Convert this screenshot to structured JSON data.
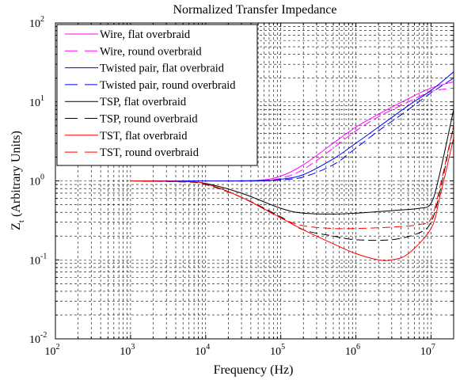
{
  "chart_data": {
    "type": "line",
    "title": "Normalized Transfer Impedance",
    "xlabel": "Frequency (Hz)",
    "ylabel": {
      "main": "Z",
      "sub": "t",
      "rest": " (Arbitrary Units)"
    },
    "xscale": "log",
    "yscale": "log",
    "xlim": [
      100,
      20000000
    ],
    "ylim": [
      0.01,
      100
    ],
    "grid": true,
    "legend_position": "top-left",
    "x_ticks": [
      {
        "base": "10",
        "exp": "2"
      },
      {
        "base": "10",
        "exp": "3"
      },
      {
        "base": "10",
        "exp": "4"
      },
      {
        "base": "10",
        "exp": "5"
      },
      {
        "base": "10",
        "exp": "6"
      },
      {
        "base": "10",
        "exp": "7"
      }
    ],
    "y_ticks": [
      {
        "base": "10",
        "exp": "2"
      },
      {
        "base": "10",
        "exp": "1"
      },
      {
        "base": "10",
        "exp": "0"
      },
      {
        "base": "10",
        "exp": "-1"
      },
      {
        "base": "10",
        "exp": "-2"
      }
    ],
    "series": [
      {
        "name": "Wire, flat overbraid",
        "color": "#ff00ff",
        "dash": "solid",
        "points": [
          [
            1000,
            1.0
          ],
          [
            10000,
            1.0
          ],
          [
            50000,
            1.02
          ],
          [
            100000,
            1.15
          ],
          [
            200000,
            1.6
          ],
          [
            500000,
            3.0
          ],
          [
            1000000,
            4.8
          ],
          [
            2000000,
            7.0
          ],
          [
            5000000,
            11.0
          ],
          [
            10000000,
            15.0
          ],
          [
            20000000,
            18.0
          ]
        ]
      },
      {
        "name": "Wire, round overbraid",
        "color": "#ff00ff",
        "dash": "dashed",
        "points": [
          [
            1000,
            1.0
          ],
          [
            10000,
            1.0
          ],
          [
            50000,
            1.01
          ],
          [
            100000,
            1.08
          ],
          [
            200000,
            1.4
          ],
          [
            500000,
            2.6
          ],
          [
            1000000,
            4.3
          ],
          [
            2000000,
            6.5
          ],
          [
            5000000,
            10.0
          ],
          [
            10000000,
            13.5
          ],
          [
            20000000,
            15.0
          ]
        ]
      },
      {
        "name": "Twisted pair, flat overbraid",
        "color": "#0000ff",
        "dash": "solid",
        "points": [
          [
            1000,
            1.0
          ],
          [
            10000,
            1.0
          ],
          [
            50000,
            1.0
          ],
          [
            100000,
            1.05
          ],
          [
            200000,
            1.2
          ],
          [
            500000,
            1.9
          ],
          [
            1000000,
            3.0
          ],
          [
            2000000,
            4.8
          ],
          [
            5000000,
            9.0
          ],
          [
            10000000,
            14.0
          ],
          [
            20000000,
            24.0
          ]
        ]
      },
      {
        "name": "Twisted pair, round overbraid",
        "color": "#0000ff",
        "dash": "dashed",
        "points": [
          [
            1000,
            1.0
          ],
          [
            10000,
            1.0
          ],
          [
            50000,
            1.0
          ],
          [
            100000,
            1.03
          ],
          [
            200000,
            1.12
          ],
          [
            500000,
            1.6
          ],
          [
            1000000,
            2.6
          ],
          [
            2000000,
            4.3
          ],
          [
            5000000,
            8.0
          ],
          [
            10000000,
            13.0
          ],
          [
            20000000,
            20.0
          ]
        ]
      },
      {
        "name": "TSP, flat overbraid",
        "color": "#000000",
        "dash": "solid",
        "points": [
          [
            1000,
            1.0
          ],
          [
            5000,
            0.98
          ],
          [
            10000,
            0.93
          ],
          [
            30000,
            0.7
          ],
          [
            100000,
            0.45
          ],
          [
            200000,
            0.39
          ],
          [
            500000,
            0.38
          ],
          [
            1000000,
            0.39
          ],
          [
            3000000,
            0.42
          ],
          [
            7000000,
            0.45
          ],
          [
            10000000,
            0.52
          ],
          [
            13000000,
            1.2
          ],
          [
            20000000,
            8.0
          ]
        ]
      },
      {
        "name": "TSP, round overbraid",
        "color": "#000000",
        "dash": "dashed",
        "points": [
          [
            1000,
            1.0
          ],
          [
            5000,
            0.97
          ],
          [
            10000,
            0.9
          ],
          [
            30000,
            0.62
          ],
          [
            100000,
            0.35
          ],
          [
            200000,
            0.24
          ],
          [
            500000,
            0.2
          ],
          [
            1000000,
            0.18
          ],
          [
            3000000,
            0.18
          ],
          [
            7000000,
            0.22
          ],
          [
            10000000,
            0.3
          ],
          [
            13000000,
            0.7
          ],
          [
            20000000,
            5.0
          ]
        ]
      },
      {
        "name": "TST, flat overbraid",
        "color": "#ff0000",
        "dash": "solid",
        "points": [
          [
            1000,
            1.0
          ],
          [
            5000,
            0.98
          ],
          [
            10000,
            0.92
          ],
          [
            30000,
            0.62
          ],
          [
            100000,
            0.34
          ],
          [
            200000,
            0.24
          ],
          [
            500000,
            0.16
          ],
          [
            1000000,
            0.12
          ],
          [
            2000000,
            0.1
          ],
          [
            3000000,
            0.1
          ],
          [
            5000000,
            0.12
          ],
          [
            10000000,
            0.25
          ],
          [
            13000000,
            0.6
          ],
          [
            20000000,
            3.5
          ]
        ]
      },
      {
        "name": "TST, round overbraid",
        "color": "#ff0000",
        "dash": "dashed",
        "points": [
          [
            1000,
            1.0
          ],
          [
            5000,
            0.97
          ],
          [
            10000,
            0.92
          ],
          [
            30000,
            0.62
          ],
          [
            100000,
            0.34
          ],
          [
            200000,
            0.27
          ],
          [
            500000,
            0.25
          ],
          [
            1000000,
            0.25
          ],
          [
            3000000,
            0.26
          ],
          [
            7000000,
            0.28
          ],
          [
            10000000,
            0.33
          ],
          [
            13000000,
            0.8
          ],
          [
            20000000,
            5.0
          ]
        ]
      }
    ]
  }
}
